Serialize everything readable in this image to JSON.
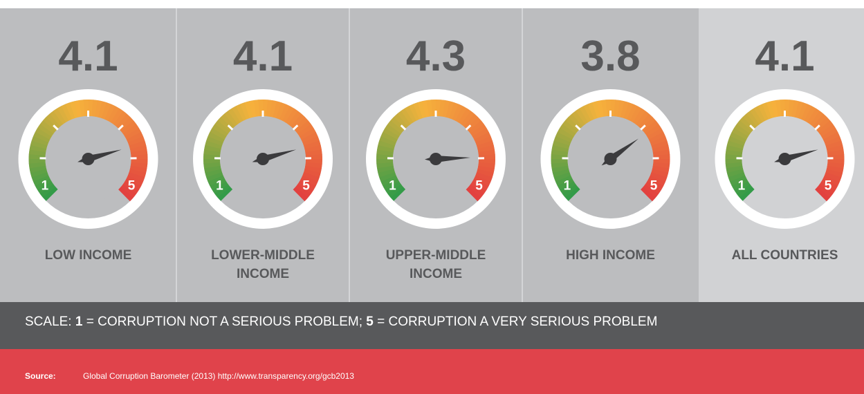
{
  "chart_data": {
    "type": "gauge",
    "categories": [
      "LOW INCOME",
      "LOWER-MIDDLE INCOME",
      "UPPER-MIDDLE INCOME",
      "HIGH INCOME",
      "ALL COUNTRIES"
    ],
    "values": [
      4.1,
      4.1,
      4.3,
      3.8,
      4.1
    ],
    "range": [
      1,
      5
    ],
    "scale": {
      "prefix": "SCALE:",
      "low_text": "= CORRUPTION NOT A SERIOUS PROBLEM;",
      "high_text": "= CORRUPTION A VERY SERIOUS PROBLEM"
    },
    "source": {
      "label": "Source:",
      "text": "Global Corruption Barometer (2013) http://www.transparency.org/gcb2013"
    }
  }
}
